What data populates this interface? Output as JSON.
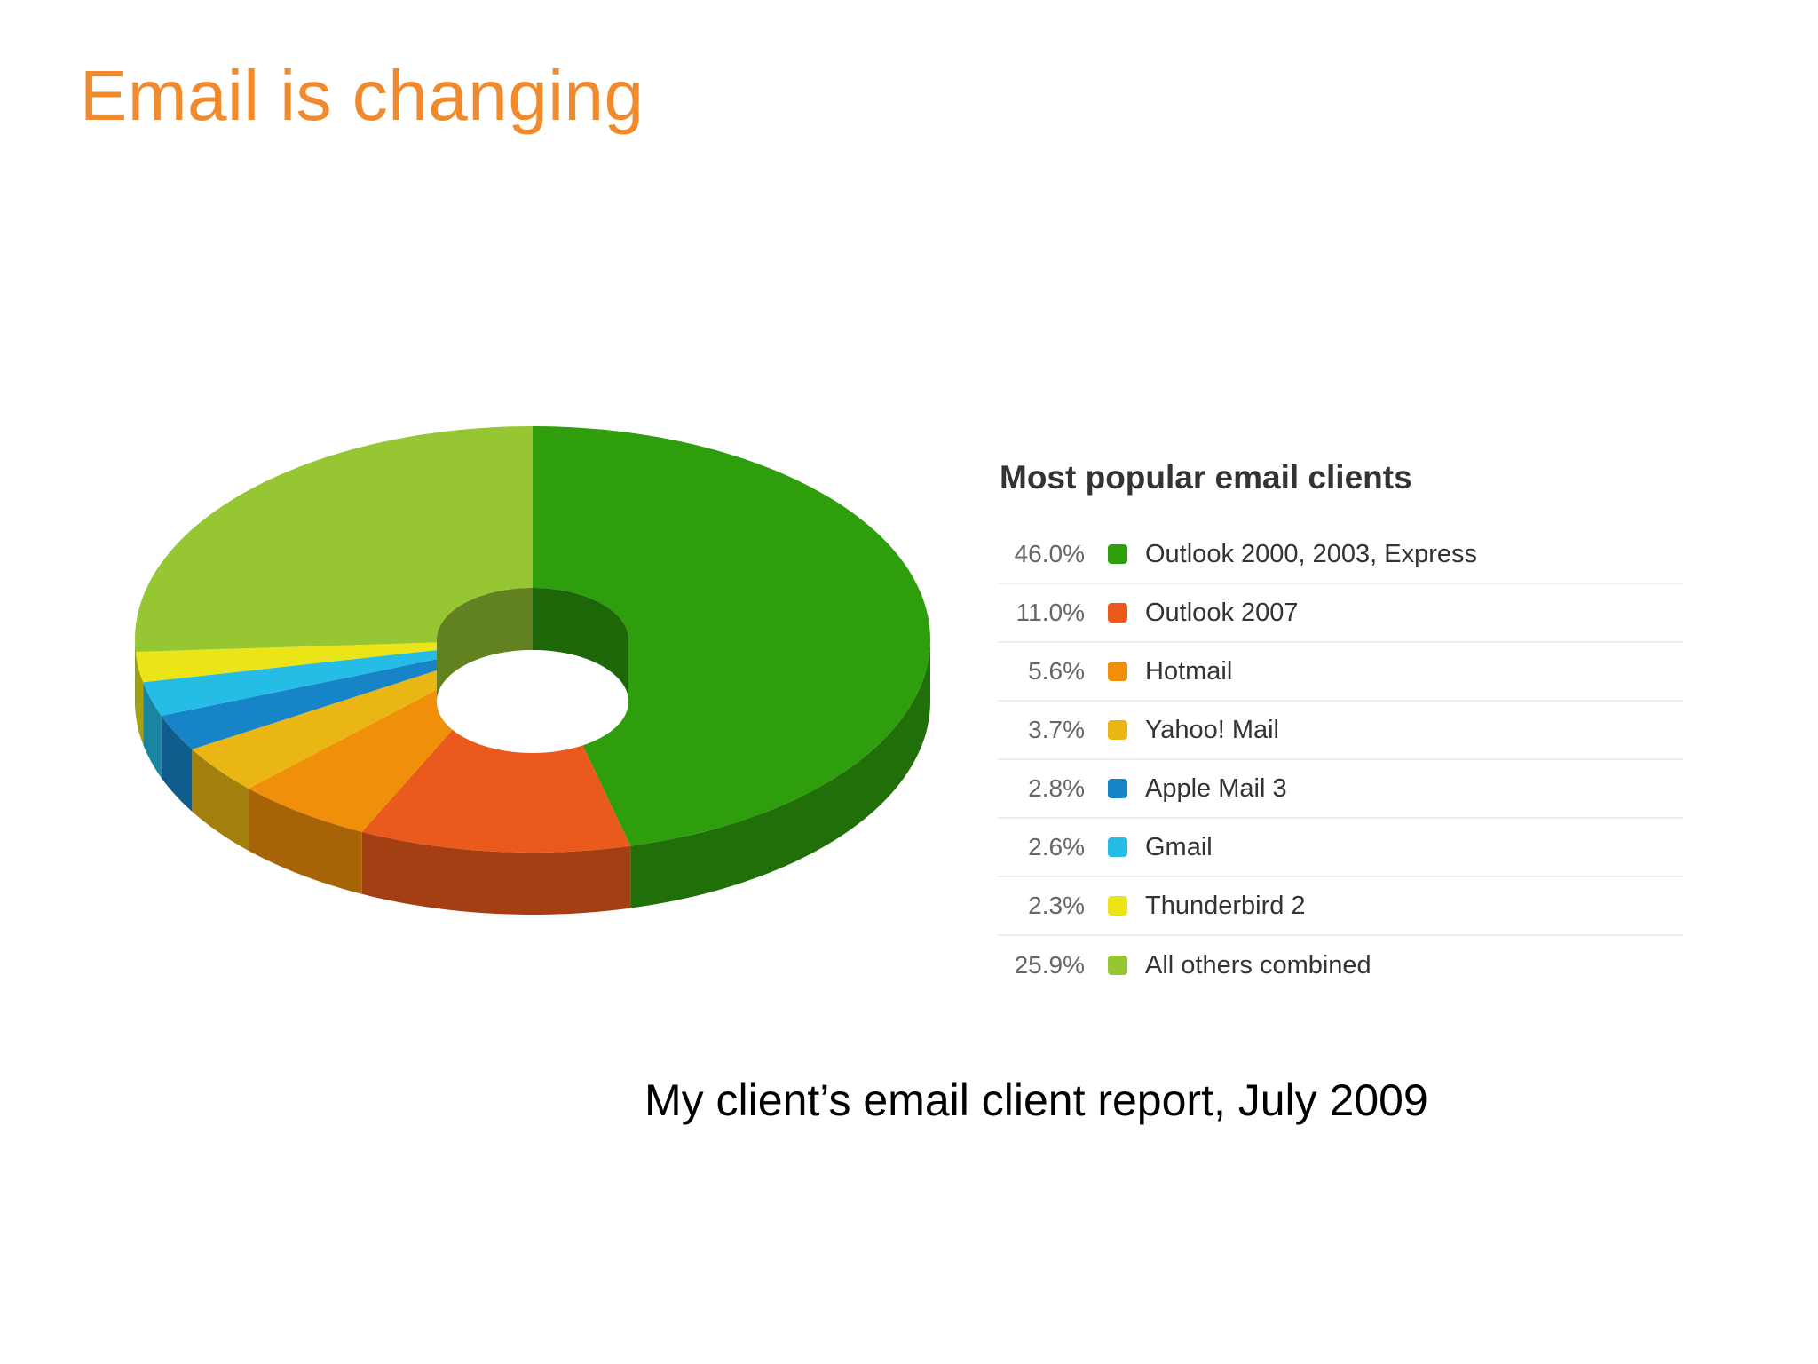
{
  "slide": {
    "title": "Email is changing",
    "caption": "My client’s email client report, July 2009"
  },
  "chart_data": {
    "type": "pie",
    "title": "Most popular email clients",
    "legend_position": "right",
    "slices": [
      {
        "label": "Outlook 2000, 2003, Express",
        "value": 46.0,
        "display": "46.0%",
        "color": "#2e9e0c"
      },
      {
        "label": "Outlook 2007",
        "value": 11.0,
        "display": "11.0%",
        "color": "#ea5a1c"
      },
      {
        "label": "Hotmail",
        "value": 5.6,
        "display": "5.6%",
        "color": "#ef8f0a"
      },
      {
        "label": "Yahoo! Mail",
        "value": 3.7,
        "display": "3.7%",
        "color": "#e9b614"
      },
      {
        "label": "Apple Mail 3",
        "value": 2.8,
        "display": "2.8%",
        "color": "#1784c8"
      },
      {
        "label": "Gmail",
        "value": 2.6,
        "display": "2.6%",
        "color": "#25bde6"
      },
      {
        "label": "Thunderbird 2",
        "value": 2.3,
        "display": "2.3%",
        "color": "#ebe517"
      },
      {
        "label": "All others combined",
        "value": 25.9,
        "display": "25.9%",
        "color": "#96c632"
      }
    ]
  }
}
